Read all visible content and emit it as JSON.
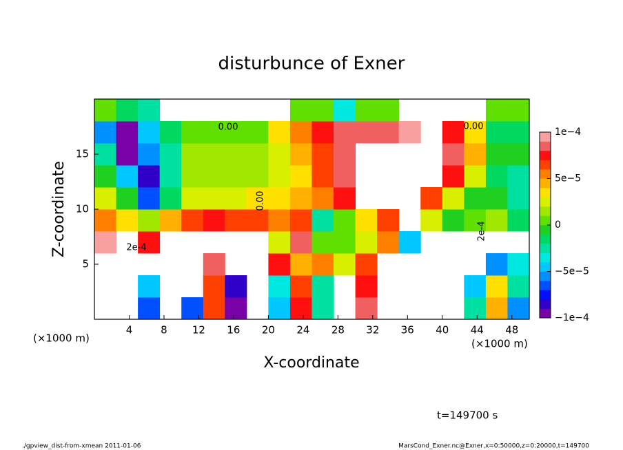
{
  "chart_data": {
    "type": "contourf",
    "title": "disturbunce of Exner",
    "x_label": "X-coordinate",
    "y_label": "Z-coordinate",
    "x_unit_label": "(×1000 m)",
    "time_label": "t=149700 s",
    "footer_left": "./gpview_dist-from-xmean  2011-01-06",
    "footer_right": "MarsCond_Exner.nc@Exner,x=0:50000,z=0:20000,t=149700",
    "contour_labels": [
      "0.00",
      "0.00",
      "0.00",
      "2e-4",
      "2e-4"
    ],
    "xlim": [
      0,
      50
    ],
    "xticks": [
      4,
      8,
      12,
      16,
      20,
      24,
      28,
      32,
      36,
      40,
      44,
      48
    ],
    "ylim": [
      0,
      20
    ],
    "yticks": [
      5,
      10,
      15
    ],
    "clim": [
      -0.0001,
      0.0001
    ],
    "cticks": [
      {
        "value": -0.0001,
        "label": "−1e−4"
      },
      {
        "value": -5e-05,
        "label": "−5e−5"
      },
      {
        "value": 0,
        "label": "0"
      },
      {
        "value": 5e-05,
        "label": "5e−5"
      },
      {
        "value": 0.0001,
        "label": "1e−4"
      }
    ],
    "colors": [
      "#7a00a8",
      "#3000c8",
      "#0010ff",
      "#0050ff",
      "#0090ff",
      "#00c8ff",
      "#00e8e0",
      "#00e0a0",
      "#00d860",
      "#20d020",
      "#60e000",
      "#a0e800",
      "#d8f000",
      "#ffe000",
      "#ffb000",
      "#ff8000",
      "#ff4000",
      "#ff1010",
      "#f06060",
      "#f8a0a0"
    ],
    "z": [
      [
        null,
        null,
        -7e-05,
        null,
        -7e-05,
        6e-05,
        -9e-05,
        null,
        -5e-05,
        7e-05,
        -3e-05,
        null,
        8e-05,
        null,
        null,
        null,
        null,
        -3e-05,
        4e-05,
        -6e-05
      ],
      [
        null,
        null,
        -5e-05,
        null,
        null,
        6e-05,
        -8e-05,
        null,
        -4e-05,
        6e-05,
        -3e-05,
        null,
        7e-05,
        null,
        null,
        null,
        null,
        -5e-05,
        3e-05,
        -3e-05
      ],
      [
        null,
        null,
        null,
        null,
        null,
        8e-05,
        null,
        null,
        7e-05,
        4e-05,
        5e-05,
        2e-05,
        6e-05,
        null,
        null,
        null,
        null,
        null,
        -6e-05,
        -4e-05
      ],
      [
        9e-05,
        null,
        7e-05,
        null,
        null,
        null,
        null,
        null,
        2e-05,
        8e-05,
        0,
        0,
        2e-05,
        5e-05,
        -5e-05,
        null,
        null,
        null,
        null,
        null
      ],
      [
        5e-05,
        3e-05,
        1e-05,
        4e-05,
        6e-05,
        7e-05,
        6e-05,
        6e-05,
        5e-05,
        6e-05,
        -3e-05,
        0,
        3e-05,
        6e-05,
        null,
        2e-05,
        -1e-05,
        0,
        1e-05,
        -2e-05
      ],
      [
        2e-05,
        -1e-05,
        -7e-05,
        -2e-05,
        2e-05,
        2e-05,
        2e-05,
        3e-05,
        3e-05,
        4e-05,
        5e-05,
        7e-05,
        null,
        null,
        null,
        6e-05,
        2e-05,
        -1e-05,
        -1e-05,
        -3e-05
      ],
      [
        -1e-05,
        -5e-05,
        -8e-05,
        -3e-05,
        1e-05,
        1e-05,
        1e-05,
        1e-05,
        2e-05,
        3e-05,
        6e-05,
        8e-05,
        null,
        null,
        null,
        null,
        7e-05,
        2e-05,
        -2e-05,
        -3e-05
      ],
      [
        -3e-05,
        -9e-05,
        -6e-05,
        -3e-05,
        1e-05,
        1e-05,
        1e-05,
        1e-05,
        2e-05,
        4e-05,
        6e-05,
        8e-05,
        null,
        null,
        null,
        null,
        8e-05,
        4e-05,
        -1e-05,
        -1e-05
      ],
      [
        -6e-05,
        -9e-05,
        -5e-05,
        -2e-05,
        0,
        0,
        0,
        0,
        3e-05,
        5e-05,
        7e-05,
        8e-05,
        8e-05,
        8e-05,
        9e-05,
        null,
        7e-05,
        3e-05,
        -2e-05,
        -2e-05
      ],
      [
        0,
        -2e-05,
        -3e-05,
        null,
        null,
        null,
        null,
        null,
        null,
        0,
        0,
        -4e-05,
        0,
        0,
        null,
        null,
        null,
        null,
        0,
        0
      ]
    ]
  }
}
